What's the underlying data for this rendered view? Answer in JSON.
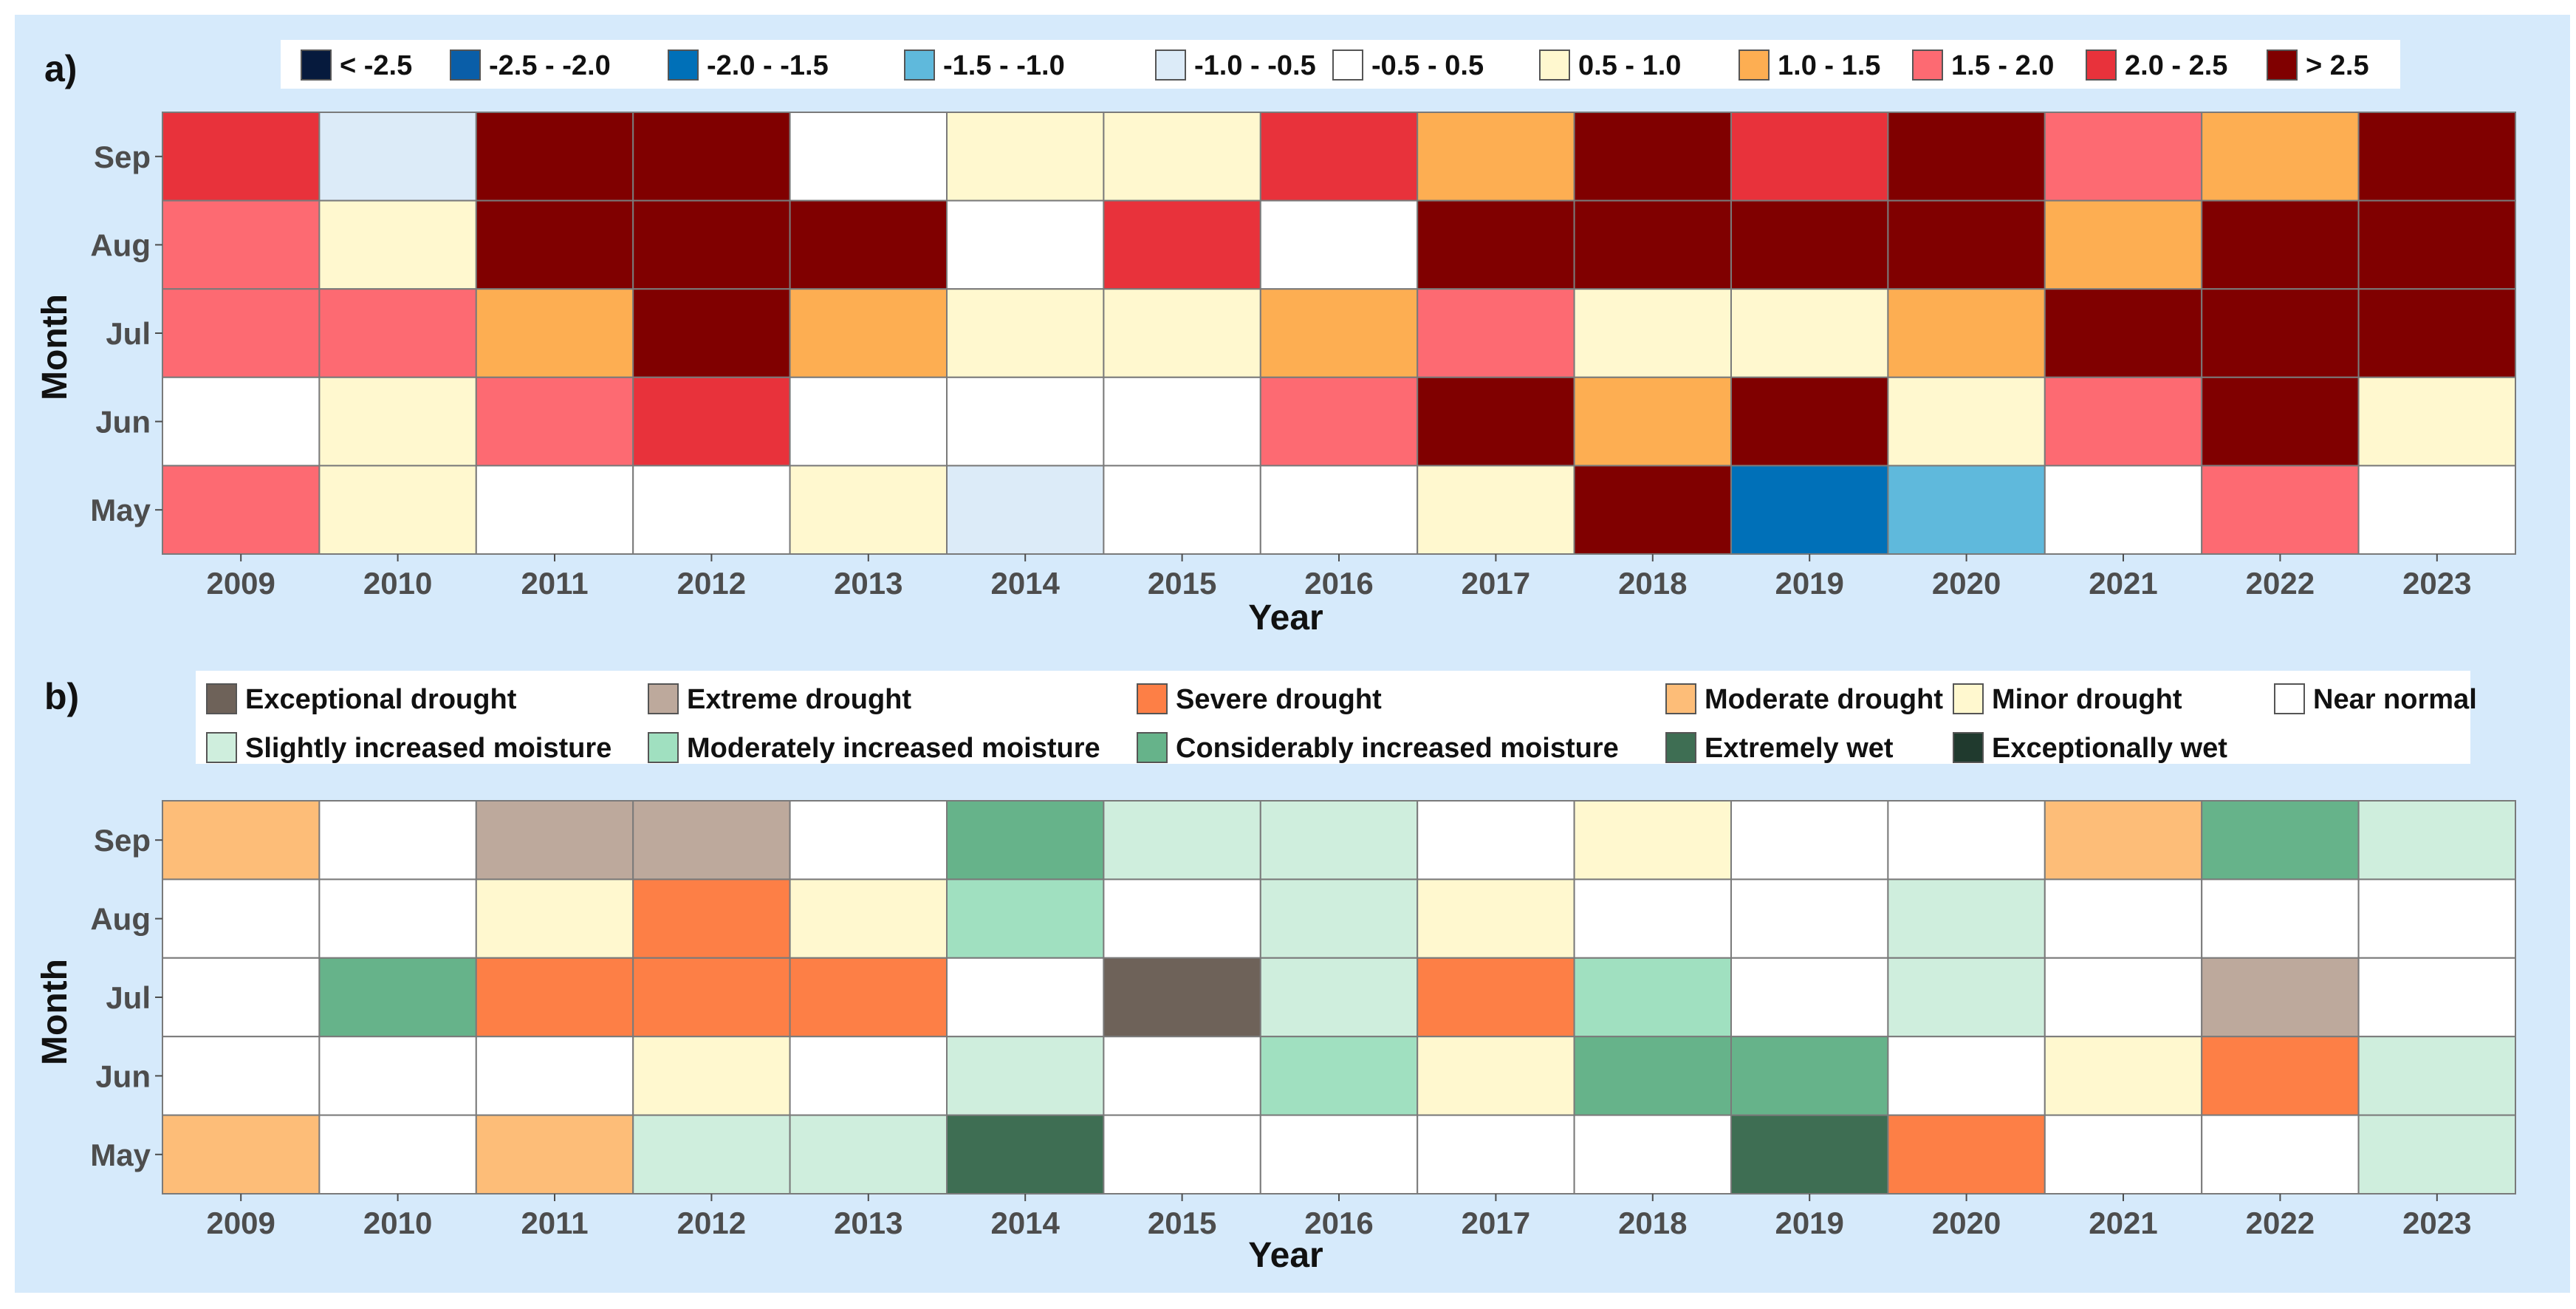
{
  "chart_data": [
    {
      "panel_label": "a)",
      "type": "heatmap",
      "xlabel": "Year",
      "ylabel": "Month",
      "years": [
        "2009",
        "2010",
        "2011",
        "2012",
        "2013",
        "2014",
        "2015",
        "2016",
        "2017",
        "2018",
        "2019",
        "2020",
        "2021",
        "2022",
        "2023"
      ],
      "months": [
        "Sep",
        "Aug",
        "Jul",
        "Jun",
        "May"
      ],
      "legend": [
        {
          "label": "< -2.5",
          "color": "#061a3d"
        },
        {
          "label": "-2.5 - -2.0",
          "color": "#0a5ea8"
        },
        {
          "label": "-2.0 - -1.5",
          "color": "#0070b8"
        },
        {
          "label": "-1.5 - -1.0",
          "color": "#5fb9dc"
        },
        {
          "label": "-1.0 - -0.5",
          "color": "#dcebf8"
        },
        {
          "label": "-0.5 - 0.5",
          "color": "#ffffff"
        },
        {
          "label": "0.5 - 1.0",
          "color": "#fff8cf"
        },
        {
          "label": "1.0 - 1.5",
          "color": "#fdae52"
        },
        {
          "label": "1.5 - 2.0",
          "color": "#fd6a72"
        },
        {
          "label": "2.0 - 2.5",
          "color": "#e8323b"
        },
        {
          "label": "> 2.5",
          "color": "#800000"
        }
      ],
      "values": [
        [
          9,
          4,
          10,
          10,
          5,
          6,
          6,
          9,
          7,
          10,
          9,
          10,
          8,
          7,
          10
        ],
        [
          8,
          6,
          10,
          10,
          10,
          5,
          9,
          5,
          10,
          10,
          10,
          10,
          7,
          10,
          10
        ],
        [
          8,
          8,
          7,
          10,
          7,
          6,
          6,
          7,
          8,
          6,
          6,
          7,
          10,
          10,
          10
        ],
        [
          5,
          6,
          8,
          9,
          5,
          5,
          5,
          8,
          10,
          7,
          10,
          6,
          8,
          10,
          6
        ],
        [
          8,
          6,
          5,
          5,
          6,
          4,
          5,
          5,
          6,
          10,
          2,
          3,
          5,
          8,
          5
        ]
      ]
    },
    {
      "panel_label": "b)",
      "type": "heatmap",
      "xlabel": "Year",
      "ylabel": "Month",
      "years": [
        "2009",
        "2010",
        "2011",
        "2012",
        "2013",
        "2014",
        "2015",
        "2016",
        "2017",
        "2018",
        "2019",
        "2020",
        "2021",
        "2022",
        "2023"
      ],
      "months": [
        "Sep",
        "Aug",
        "Jul",
        "Jun",
        "May"
      ],
      "legend": [
        {
          "label": "Exceptional drought",
          "color": "#6e6259"
        },
        {
          "label": "Extreme drought",
          "color": "#bda99c"
        },
        {
          "label": "Severe drought",
          "color": "#fd7f46"
        },
        {
          "label": "Moderate drought",
          "color": "#fdbd78"
        },
        {
          "label": "Minor drought",
          "color": "#fff8cf"
        },
        {
          "label": "Near normal",
          "color": "#ffffff"
        },
        {
          "label": "Slightly increased moisture",
          "color": "#cfeedd"
        },
        {
          "label": "Moderately increased moisture",
          "color": "#a0e0c0"
        },
        {
          "label": "Considerably increased moisture",
          "color": "#66b38a"
        },
        {
          "label": "Extremely wet",
          "color": "#3e6e53"
        },
        {
          "label": "Exceptionally wet",
          "color": "#203a2e"
        }
      ],
      "values": [
        [
          3,
          5,
          1,
          1,
          5,
          8,
          6,
          6,
          5,
          4,
          5,
          5,
          3,
          8,
          6
        ],
        [
          5,
          5,
          4,
          2,
          4,
          7,
          5,
          6,
          4,
          5,
          5,
          6,
          5,
          5,
          5
        ],
        [
          5,
          8,
          2,
          2,
          2,
          5,
          0,
          6,
          2,
          7,
          5,
          6,
          5,
          1,
          5
        ],
        [
          5,
          5,
          5,
          4,
          5,
          6,
          5,
          7,
          4,
          8,
          8,
          5,
          4,
          2,
          6
        ],
        [
          3,
          5,
          3,
          6,
          6,
          9,
          5,
          5,
          5,
          5,
          9,
          2,
          5,
          5,
          6
        ]
      ]
    }
  ]
}
